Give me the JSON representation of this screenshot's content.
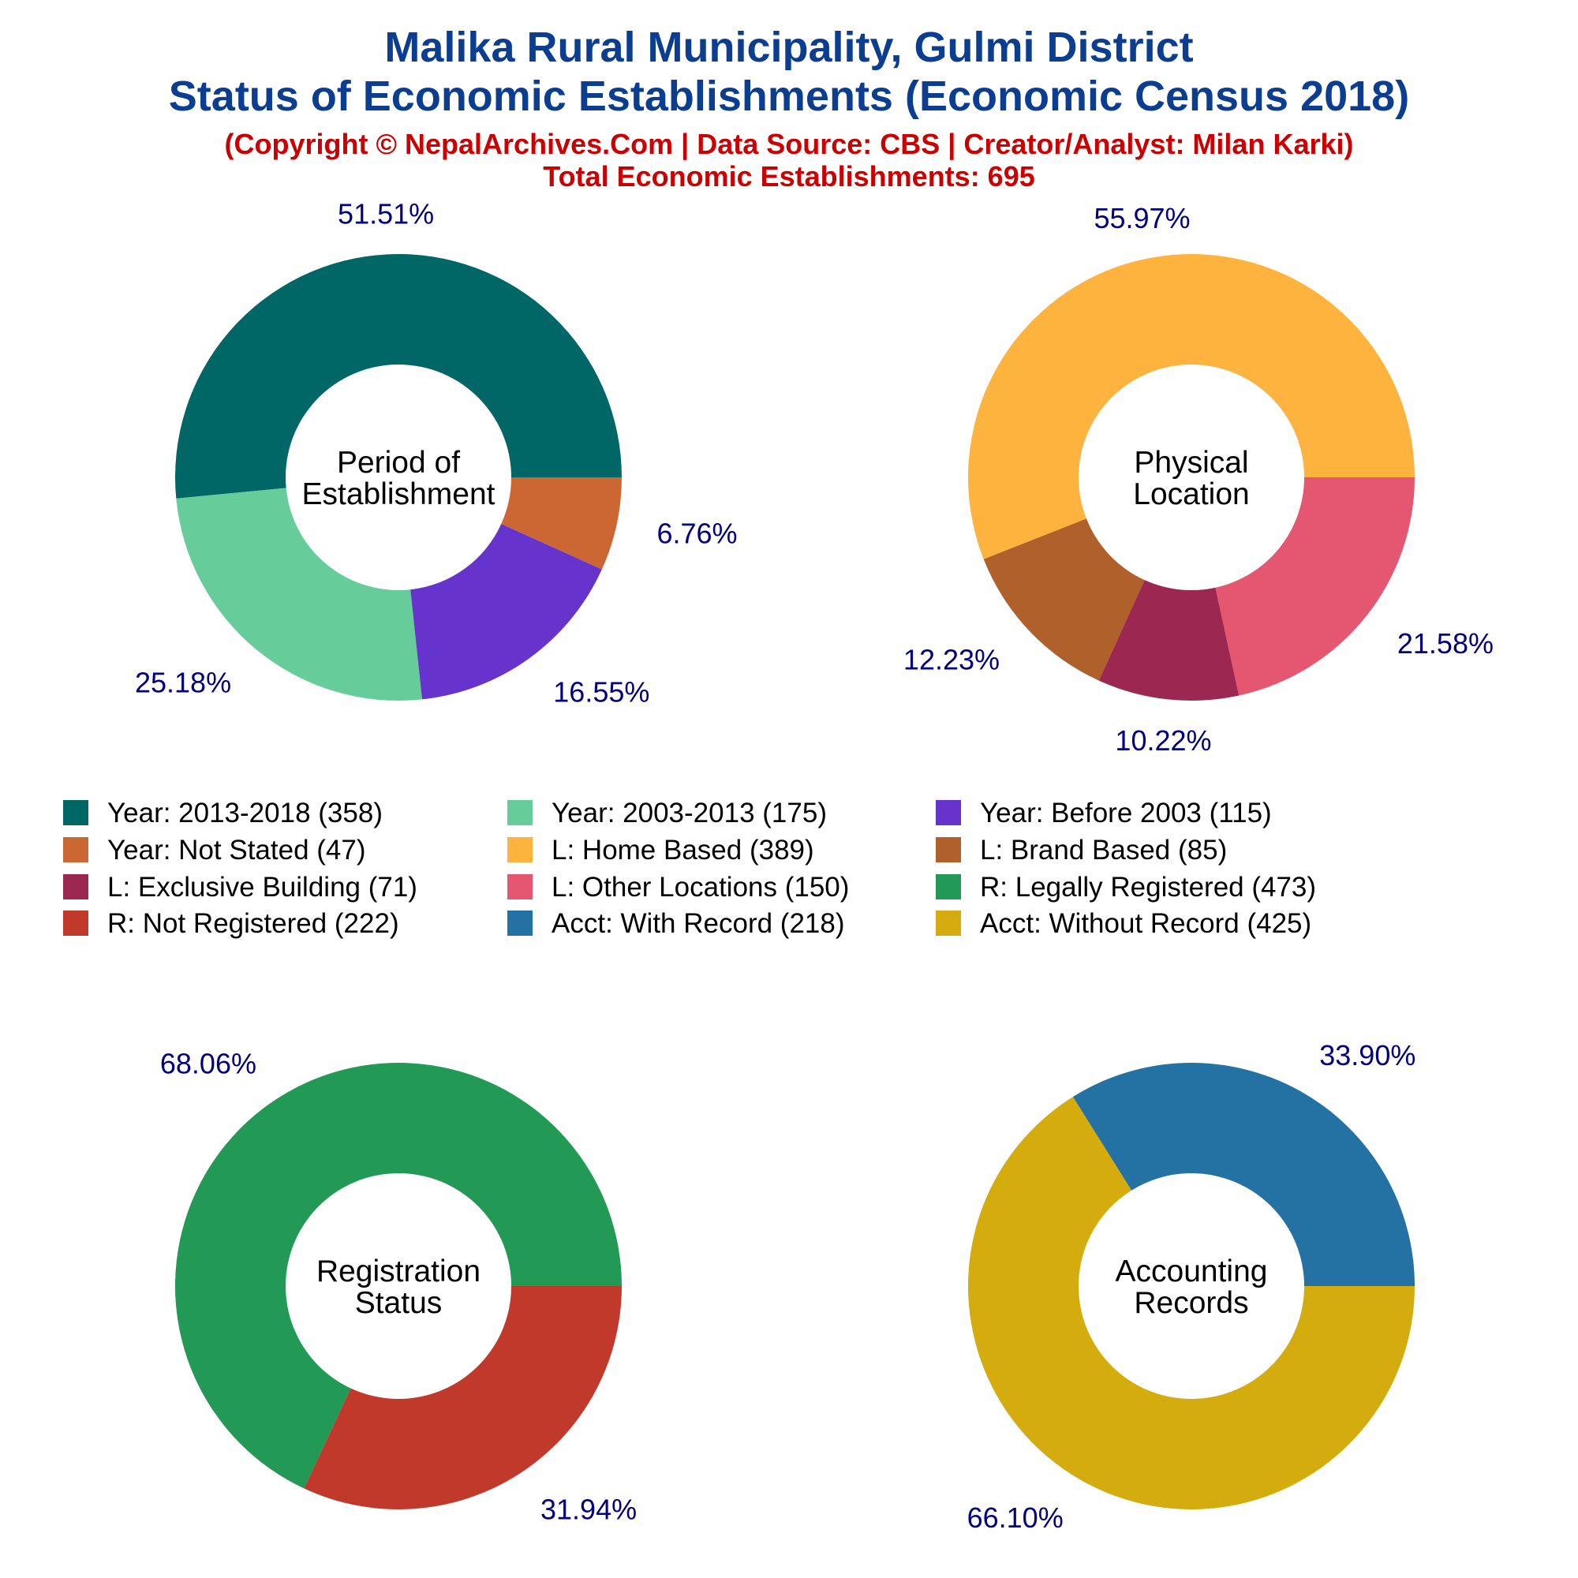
{
  "header": {
    "title_line1": "Malika Rural Municipality, Gulmi District",
    "title_line2": "Status of Economic Establishments (Economic Census 2018)",
    "subtitle_line1": "(Copyright © NepalArchives.Com | Data Source: CBS | Creator/Analyst: Milan Karki)",
    "subtitle_line2": "Total Economic Establishments: 695"
  },
  "legend": [
    {
      "label": "Year: 2013-2018 (358)",
      "color": "#006666"
    },
    {
      "label": "Year: 2003-2013 (175)",
      "color": "#66cc99"
    },
    {
      "label": "Year: Before 2003 (115)",
      "color": "#6633cc"
    },
    {
      "label": "Year: Not Stated (47)",
      "color": "#cc6633"
    },
    {
      "label": "L: Home Based (389)",
      "color": "#ffb33f"
    },
    {
      "label": "L: Brand Based (85)",
      "color": "#b0602b"
    },
    {
      "label": "L: Exclusive Building (71)",
      "color": "#9c2852"
    },
    {
      "label": "L: Other Locations (150)",
      "color": "#e55670"
    },
    {
      "label": "R: Legally Registered (473)",
      "color": "#229954"
    },
    {
      "label": "R: Not Registered (222)",
      "color": "#c0392b"
    },
    {
      "label": "Acct: With Record (218)",
      "color": "#2471a3"
    },
    {
      "label": "Acct: Without Record (425)",
      "color": "#d4ac0d"
    }
  ],
  "chart_data": [
    {
      "type": "pie",
      "center_label": [
        "Period of",
        "Establishment"
      ],
      "slices": [
        {
          "name": "Year: 2013-2018",
          "value": 358,
          "pct_label": "51.51%",
          "color": "#006666"
        },
        {
          "name": "Year: 2003-2013",
          "value": 175,
          "pct_label": "25.18%",
          "color": "#66cc99"
        },
        {
          "name": "Year: Before 2003",
          "value": 115,
          "pct_label": "16.55%",
          "color": "#6633cc"
        },
        {
          "name": "Year: Not Stated",
          "value": 47,
          "pct_label": "6.76%",
          "color": "#cc6633"
        }
      ]
    },
    {
      "type": "pie",
      "center_label": [
        "Physical",
        "Location"
      ],
      "slices": [
        {
          "name": "L: Home Based",
          "value": 389,
          "pct_label": "55.97%",
          "color": "#ffb33f"
        },
        {
          "name": "L: Brand Based",
          "value": 85,
          "pct_label": "12.23%",
          "color": "#b0602b"
        },
        {
          "name": "L: Exclusive Building",
          "value": 71,
          "pct_label": "10.22%",
          "color": "#9c2852"
        },
        {
          "name": "L: Other Locations",
          "value": 150,
          "pct_label": "21.58%",
          "color": "#e55670"
        }
      ]
    },
    {
      "type": "pie",
      "center_label": [
        "Registration",
        "Status"
      ],
      "slices": [
        {
          "name": "R: Legally Registered",
          "value": 473,
          "pct_label": "68.06%",
          "color": "#229954"
        },
        {
          "name": "R: Not Registered",
          "value": 222,
          "pct_label": "31.94%",
          "color": "#c0392b"
        }
      ]
    },
    {
      "type": "pie",
      "center_label": [
        "Accounting",
        "Records"
      ],
      "slices": [
        {
          "name": "Acct: With Record",
          "value": 218,
          "pct_label": "33.90%",
          "color": "#2471a3"
        },
        {
          "name": "Acct: Without Record",
          "value": 425,
          "pct_label": "66.10%",
          "color": "#d4ac0d"
        }
      ]
    }
  ]
}
